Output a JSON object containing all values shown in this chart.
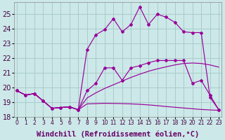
{
  "background_color": "#cce8e8",
  "grid_color": "#aacccc",
  "line_color": "#990099",
  "xlim": [
    -0.3,
    23.3
  ],
  "ylim": [
    18,
    25.8
  ],
  "yticks": [
    18,
    19,
    20,
    21,
    22,
    23,
    24,
    25
  ],
  "xticks": [
    0,
    1,
    2,
    3,
    4,
    5,
    6,
    7,
    8,
    9,
    10,
    11,
    12,
    13,
    14,
    15,
    16,
    17,
    18,
    19,
    20,
    21,
    22,
    23
  ],
  "xlabel": "Windchill (Refroidissement éolien,°C)",
  "line_smooth1_x": [
    0,
    1,
    2,
    3,
    4,
    5,
    6,
    7,
    8,
    9,
    10,
    11,
    12,
    13,
    14,
    15,
    16,
    17,
    18,
    19,
    20,
    21,
    22,
    23
  ],
  "line_smooth1_y": [
    19.8,
    19.5,
    19.6,
    19.1,
    18.6,
    18.65,
    18.7,
    18.5,
    18.9,
    18.92,
    18.94,
    18.93,
    18.92,
    18.9,
    18.87,
    18.83,
    18.78,
    18.72,
    18.67,
    18.62,
    18.57,
    18.52,
    18.49,
    18.46
  ],
  "line_smooth2_x": [
    0,
    1,
    2,
    3,
    4,
    5,
    6,
    7,
    8,
    9,
    10,
    11,
    12,
    13,
    14,
    15,
    16,
    17,
    18,
    19,
    20,
    21,
    22,
    23
  ],
  "line_smooth2_y": [
    19.8,
    19.5,
    19.6,
    19.1,
    18.6,
    18.65,
    18.7,
    18.5,
    19.3,
    19.65,
    19.95,
    20.2,
    20.45,
    20.7,
    20.92,
    21.12,
    21.28,
    21.42,
    21.55,
    21.65,
    21.68,
    21.65,
    21.55,
    21.4
  ],
  "line_marker1_x": [
    0,
    1,
    2,
    3,
    4,
    5,
    6,
    7,
    8,
    9,
    10,
    11,
    12,
    13,
    14,
    15,
    16,
    17,
    18,
    19,
    20,
    21,
    22,
    23
  ],
  "line_marker1_y": [
    19.8,
    19.5,
    19.6,
    19.1,
    18.6,
    18.65,
    18.7,
    18.5,
    19.8,
    20.3,
    21.35,
    21.35,
    20.5,
    21.35,
    21.5,
    21.7,
    21.85,
    21.85,
    21.85,
    21.85,
    20.3,
    20.5,
    19.5,
    18.5
  ],
  "line_marker2_x": [
    0,
    1,
    2,
    3,
    4,
    5,
    6,
    7,
    8,
    9,
    10,
    11,
    12,
    13,
    14,
    15,
    16,
    17,
    18,
    19,
    20,
    21,
    22,
    23
  ],
  "line_marker2_y": [
    19.8,
    19.5,
    19.6,
    19.1,
    18.6,
    18.65,
    18.7,
    18.5,
    22.6,
    23.6,
    23.95,
    24.7,
    23.8,
    24.3,
    25.5,
    24.3,
    25.0,
    24.8,
    24.45,
    23.8,
    23.75,
    23.75,
    19.35,
    18.5
  ],
  "xlabel_fontsize": 7.5,
  "ytick_fontsize": 7,
  "xtick_fontsize": 5.5
}
